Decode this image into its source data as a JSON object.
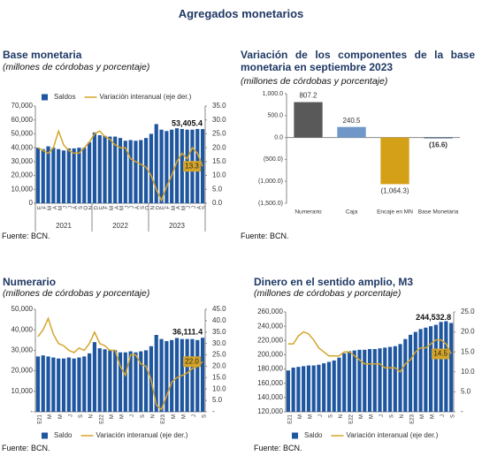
{
  "title": "Agregados monetarios",
  "chart_data": [
    {
      "type": "combo",
      "title": "Base monetaria",
      "subtitle": "(millones de córdobas y porcentaje)",
      "source": "Fuente: BCN.",
      "categories": [
        "E",
        "F",
        "M",
        "A",
        "M",
        "J",
        "J",
        "A",
        "S",
        "O",
        "N",
        "D",
        "E",
        "F",
        "M",
        "A",
        "M",
        "J",
        "J",
        "A",
        "S",
        "O",
        "N",
        "D",
        "E",
        "F",
        "M",
        "A",
        "M",
        "J",
        "J",
        "A",
        "S"
      ],
      "x_groups": [
        "2021",
        "2022",
        "2023"
      ],
      "legend": "top",
      "series": [
        {
          "name": "Saldos",
          "color": "#1f56a0",
          "values": [
            40000,
            39000,
            41000,
            40000,
            39000,
            38000,
            39500,
            39500,
            40000,
            40000,
            44000,
            51000,
            49000,
            48500,
            48000,
            48000,
            47000,
            45000,
            45500,
            45000,
            45500,
            47000,
            50000,
            57000,
            53000,
            52000,
            53000,
            54000,
            53500,
            53000,
            53000,
            53500,
            53405.4
          ],
          "value_labels": [
            null,
            null,
            null,
            null,
            null,
            null,
            null,
            null,
            null,
            null,
            null,
            null,
            null,
            null,
            null,
            null,
            null,
            null,
            null,
            null,
            null,
            null,
            null,
            null,
            null,
            null,
            null,
            null,
            null,
            null,
            null,
            null,
            "53,405.4"
          ]
        },
        {
          "name": "Variación interanual (eje der.)",
          "color": "#d4a52a",
          "axis": "y2",
          "values": [
            20,
            19,
            18,
            20,
            26,
            21,
            19,
            18,
            18,
            20,
            22,
            25,
            26,
            24,
            23,
            21,
            20,
            20,
            16,
            15,
            14,
            13,
            10,
            5,
            1,
            6,
            10,
            15,
            18,
            16,
            20,
            18,
            13.3
          ],
          "value_labels": [
            null,
            null,
            null,
            null,
            null,
            null,
            null,
            null,
            null,
            null,
            null,
            null,
            null,
            null,
            null,
            null,
            null,
            null,
            null,
            null,
            null,
            null,
            null,
            null,
            null,
            null,
            null,
            null,
            null,
            null,
            null,
            null,
            "13.3"
          ]
        }
      ],
      "ylim": [
        0,
        70000
      ],
      "yticks": [
        0,
        {
          "value": 10000,
          "label": "10,000"
        },
        {
          "value": 20000,
          "label": "20,000"
        },
        {
          "value": 30000,
          "label": "30,000"
        },
        {
          "value": 40000,
          "label": "40,000"
        },
        {
          "value": 50000,
          "label": "50,000"
        },
        {
          "value": 60000,
          "label": "60,000"
        },
        {
          "value": 70000,
          "label": "70,000"
        }
      ],
      "y2lim": [
        0,
        35
      ],
      "y2ticks": [
        {
          "value": 0,
          "label": "0.0"
        },
        {
          "value": 5,
          "label": "5.0"
        },
        {
          "value": 10,
          "label": "10.0"
        },
        {
          "value": 15,
          "label": "15.0"
        },
        {
          "value": 20,
          "label": "20.0"
        },
        {
          "value": 25,
          "label": "25.0"
        },
        {
          "value": 30,
          "label": "30.0"
        },
        {
          "value": 35,
          "label": "35.0"
        }
      ]
    },
    {
      "type": "bar",
      "title": "Variación de los componentes de la base monetaria en septiembre 2023",
      "subtitle": "(millones de córdobas y porcentaje)",
      "source": "Fuente: BCN.",
      "categories": [
        "Numerario",
        "Caja",
        "Encaje en MN",
        "Base Monetaria"
      ],
      "values": [
        807.2,
        240.5,
        -1064.3,
        -16.6
      ],
      "value_labels": [
        "807.2",
        "240.5",
        "(1,064.3)",
        "(16.6)"
      ],
      "colors": [
        "#595959",
        "#6f98c8",
        "#d4a017",
        "#1f3864"
      ],
      "ylim": [
        -1500,
        1000
      ],
      "yticks": [
        {
          "value": 1000,
          "label": "1,000.0"
        },
        {
          "value": 500,
          "label": "500.0"
        },
        {
          "value": 0,
          "label": "0.0"
        },
        {
          "value": -500,
          "label": "(500.0)"
        },
        {
          "value": -1000,
          "label": "(1,000.0)"
        },
        {
          "value": -1500,
          "label": "(1,500.0)"
        }
      ]
    },
    {
      "type": "combo",
      "title": "Numerario",
      "subtitle": "(millones de córdobas y porcentaje)",
      "source": "Fuente: BCN.",
      "categories": [
        "E21",
        null,
        "M",
        null,
        "M",
        null,
        "J",
        null,
        "S",
        null,
        "N",
        null,
        "E22",
        null,
        "M",
        null,
        "M",
        null,
        "J",
        null,
        "S",
        null,
        "N",
        null,
        "E23",
        null,
        "M",
        null,
        "M",
        null,
        "J",
        null,
        "S"
      ],
      "legend": "bottom",
      "series": [
        {
          "name": "Saldo",
          "color": "#1f56a0",
          "values": [
            27000,
            27500,
            27000,
            26500,
            26000,
            26000,
            26500,
            26000,
            26500,
            27000,
            28500,
            34000,
            31000,
            30500,
            30000,
            30000,
            29000,
            29000,
            29500,
            29000,
            29500,
            30000,
            32000,
            37500,
            35500,
            34500,
            35000,
            36000,
            35500,
            35500,
            35500,
            35000,
            36111.4
          ],
          "value_labels": [
            null,
            null,
            null,
            null,
            null,
            null,
            null,
            null,
            null,
            null,
            null,
            null,
            null,
            null,
            null,
            null,
            null,
            null,
            null,
            null,
            null,
            null,
            null,
            null,
            null,
            null,
            null,
            null,
            null,
            null,
            null,
            null,
            "36,111.4"
          ]
        },
        {
          "name": "Variación interanual (eje der.)",
          "color": "#d4a52a",
          "axis": "y2",
          "values": [
            33,
            36,
            41,
            34,
            30,
            29,
            27,
            26,
            28,
            27,
            30,
            35,
            30,
            29,
            27,
            27,
            20,
            16,
            25,
            25,
            21,
            20,
            14,
            3,
            1,
            7,
            13,
            15,
            16,
            17,
            19,
            20,
            22
          ],
          "value_labels": [
            null,
            null,
            null,
            null,
            null,
            null,
            null,
            null,
            null,
            null,
            null,
            null,
            null,
            null,
            null,
            null,
            null,
            null,
            null,
            null,
            null,
            null,
            null,
            null,
            null,
            null,
            null,
            null,
            null,
            null,
            null,
            null,
            "22.0"
          ]
        }
      ],
      "ylim": [
        0,
        50000
      ],
      "yticks": [
        {
          "value": 0,
          "label": "-"
        },
        {
          "value": 10000,
          "label": "10,000"
        },
        {
          "value": 20000,
          "label": "20,000"
        },
        {
          "value": 30000,
          "label": "30,000"
        },
        {
          "value": 40000,
          "label": "40,000"
        },
        {
          "value": 50000,
          "label": "50,000"
        }
      ],
      "y2lim": [
        0,
        45
      ],
      "y2ticks": [
        {
          "value": 0,
          "label": "-"
        },
        {
          "value": 5,
          "label": "5.0"
        },
        {
          "value": 10,
          "label": "10.0"
        },
        {
          "value": 15,
          "label": "15.0"
        },
        {
          "value": 20,
          "label": "20.0"
        },
        {
          "value": 25,
          "label": "25.0"
        },
        {
          "value": 30,
          "label": "30.0"
        },
        {
          "value": 35,
          "label": "35.0"
        },
        {
          "value": 40,
          "label": "40.0"
        },
        {
          "value": 45,
          "label": "45.0"
        }
      ]
    },
    {
      "type": "combo",
      "title": "Dinero en el sentido amplio, M3",
      "subtitle": "(millones de córdobas y porcentaje)",
      "source": "Fuente: BCN.",
      "categories": [
        "E21",
        null,
        "M",
        null,
        "M",
        null,
        "J",
        null,
        "S",
        null,
        "N",
        null,
        "E22",
        null,
        "M",
        null,
        "M",
        null,
        "J",
        null,
        "S",
        null,
        "N",
        null,
        "E23",
        null,
        "M",
        null,
        "M",
        null,
        "J",
        null,
        "S"
      ],
      "legend": "bottom",
      "series": [
        {
          "name": "Saldo",
          "color": "#1f56a0",
          "values": [
            178000,
            182000,
            183000,
            184000,
            185000,
            185000,
            186000,
            188000,
            190000,
            192000,
            196000,
            202000,
            205000,
            206000,
            207000,
            207000,
            208000,
            208000,
            209000,
            210000,
            211000,
            212000,
            215000,
            222000,
            228000,
            232000,
            236000,
            238000,
            240000,
            242000,
            246000,
            247000,
            244532.8
          ],
          "value_labels": [
            null,
            null,
            null,
            null,
            null,
            null,
            null,
            null,
            null,
            null,
            null,
            null,
            null,
            null,
            null,
            null,
            null,
            null,
            null,
            null,
            null,
            null,
            null,
            null,
            null,
            null,
            null,
            null,
            null,
            null,
            null,
            null,
            "244,532.8"
          ]
        },
        {
          "name": "Variación interanual (eje der.)",
          "color": "#d4a52a",
          "axis": "y2",
          "values": [
            17,
            17,
            19,
            20,
            19.5,
            18,
            16,
            15,
            14,
            14,
            14,
            15,
            15,
            14,
            13,
            12,
            12,
            12,
            12,
            11,
            11,
            11,
            10,
            12,
            13,
            15,
            16,
            16,
            17,
            18,
            18,
            17,
            14.5
          ],
          "value_labels": [
            null,
            null,
            null,
            null,
            null,
            null,
            null,
            null,
            null,
            null,
            null,
            null,
            null,
            null,
            null,
            null,
            null,
            null,
            null,
            null,
            null,
            null,
            null,
            null,
            null,
            null,
            null,
            null,
            null,
            null,
            null,
            null,
            "14.5"
          ]
        }
      ],
      "ylim": [
        120000,
        260000
      ],
      "yticks": [
        {
          "value": 120000,
          "label": "120,000"
        },
        {
          "value": 140000,
          "label": "140,000"
        },
        {
          "value": 160000,
          "label": "160,000"
        },
        {
          "value": 180000,
          "label": "180,000"
        },
        {
          "value": 200000,
          "label": "200,000"
        },
        {
          "value": 220000,
          "label": "220,000"
        },
        {
          "value": 240000,
          "label": "240,000"
        },
        {
          "value": 260000,
          "label": "260,000"
        }
      ],
      "y2lim": [
        0,
        25
      ],
      "y2ticks": [
        {
          "value": 0,
          "label": "-"
        },
        {
          "value": 5,
          "label": "5.0"
        },
        {
          "value": 10,
          "label": "10.0"
        },
        {
          "value": 15,
          "label": "15.0"
        },
        {
          "value": 20,
          "label": "20.0"
        },
        {
          "value": 25,
          "label": "25.0"
        }
      ]
    }
  ]
}
